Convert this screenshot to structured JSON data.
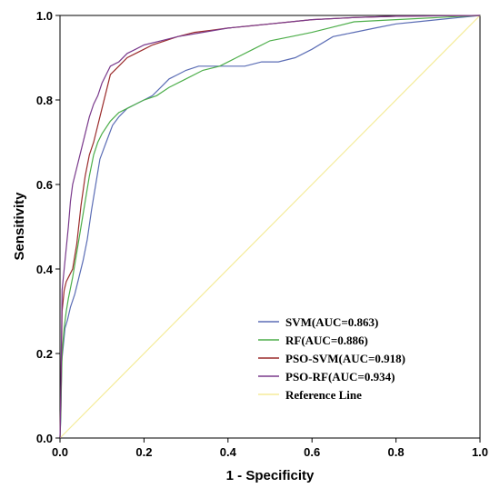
{
  "chart_data": {
    "type": "line",
    "title": "",
    "xlabel": "1 - Specificity",
    "ylabel": "Sensitivity",
    "xlim": [
      0,
      1
    ],
    "ylim": [
      0,
      1
    ],
    "xticks": [
      "0.0",
      "0.2",
      "0.4",
      "0.6",
      "0.8",
      "1.0"
    ],
    "yticks": [
      "0.0",
      "0.2",
      "0.4",
      "0.6",
      "0.8",
      "1.0"
    ],
    "grid": false,
    "legend_position": "bottom-right",
    "series": [
      {
        "name": "SVM(AUC=0.863)",
        "color": "#5b6db5",
        "points": [
          [
            0,
            0
          ],
          [
            0.002,
            0.05
          ],
          [
            0.004,
            0.18
          ],
          [
            0.008,
            0.22
          ],
          [
            0.012,
            0.26
          ],
          [
            0.018,
            0.28
          ],
          [
            0.025,
            0.31
          ],
          [
            0.035,
            0.34
          ],
          [
            0.045,
            0.38
          ],
          [
            0.055,
            0.42
          ],
          [
            0.065,
            0.47
          ],
          [
            0.075,
            0.54
          ],
          [
            0.085,
            0.6
          ],
          [
            0.095,
            0.66
          ],
          [
            0.11,
            0.7
          ],
          [
            0.125,
            0.74
          ],
          [
            0.14,
            0.76
          ],
          [
            0.16,
            0.78
          ],
          [
            0.18,
            0.79
          ],
          [
            0.2,
            0.8
          ],
          [
            0.22,
            0.81
          ],
          [
            0.24,
            0.83
          ],
          [
            0.26,
            0.85
          ],
          [
            0.28,
            0.86
          ],
          [
            0.3,
            0.87
          ],
          [
            0.33,
            0.88
          ],
          [
            0.36,
            0.88
          ],
          [
            0.4,
            0.88
          ],
          [
            0.44,
            0.88
          ],
          [
            0.48,
            0.89
          ],
          [
            0.52,
            0.89
          ],
          [
            0.56,
            0.9
          ],
          [
            0.6,
            0.92
          ],
          [
            0.65,
            0.95
          ],
          [
            0.7,
            0.96
          ],
          [
            0.75,
            0.97
          ],
          [
            0.8,
            0.98
          ],
          [
            0.85,
            0.985
          ],
          [
            0.9,
            0.99
          ],
          [
            0.95,
            0.995
          ],
          [
            1,
            1
          ]
        ]
      },
      {
        "name": "RF(AUC=0.886)",
        "color": "#4dae4a",
        "points": [
          [
            0,
            0
          ],
          [
            0.002,
            0.06
          ],
          [
            0.005,
            0.2
          ],
          [
            0.01,
            0.26
          ],
          [
            0.015,
            0.3
          ],
          [
            0.02,
            0.33
          ],
          [
            0.03,
            0.38
          ],
          [
            0.04,
            0.44
          ],
          [
            0.05,
            0.5
          ],
          [
            0.06,
            0.56
          ],
          [
            0.07,
            0.62
          ],
          [
            0.08,
            0.67
          ],
          [
            0.09,
            0.7
          ],
          [
            0.1,
            0.72
          ],
          [
            0.12,
            0.75
          ],
          [
            0.14,
            0.77
          ],
          [
            0.16,
            0.78
          ],
          [
            0.18,
            0.79
          ],
          [
            0.2,
            0.8
          ],
          [
            0.23,
            0.81
          ],
          [
            0.26,
            0.83
          ],
          [
            0.3,
            0.85
          ],
          [
            0.34,
            0.87
          ],
          [
            0.38,
            0.88
          ],
          [
            0.42,
            0.9
          ],
          [
            0.46,
            0.92
          ],
          [
            0.5,
            0.94
          ],
          [
            0.55,
            0.95
          ],
          [
            0.6,
            0.96
          ],
          [
            0.64,
            0.97
          ],
          [
            0.7,
            0.985
          ],
          [
            0.8,
            0.99
          ],
          [
            0.9,
            0.995
          ],
          [
            1,
            1
          ]
        ]
      },
      {
        "name": "PSO-SVM(AUC=0.918)",
        "color": "#9b2c2c",
        "points": [
          [
            0,
            0
          ],
          [
            0.002,
            0.1
          ],
          [
            0.005,
            0.3
          ],
          [
            0.01,
            0.35
          ],
          [
            0.015,
            0.37
          ],
          [
            0.02,
            0.38
          ],
          [
            0.03,
            0.4
          ],
          [
            0.04,
            0.46
          ],
          [
            0.05,
            0.55
          ],
          [
            0.06,
            0.62
          ],
          [
            0.07,
            0.67
          ],
          [
            0.08,
            0.7
          ],
          [
            0.09,
            0.74
          ],
          [
            0.1,
            0.78
          ],
          [
            0.11,
            0.82
          ],
          [
            0.12,
            0.86
          ],
          [
            0.14,
            0.88
          ],
          [
            0.16,
            0.9
          ],
          [
            0.18,
            0.91
          ],
          [
            0.2,
            0.92
          ],
          [
            0.22,
            0.93
          ],
          [
            0.25,
            0.94
          ],
          [
            0.28,
            0.95
          ],
          [
            0.32,
            0.96
          ],
          [
            0.36,
            0.965
          ],
          [
            0.4,
            0.97
          ],
          [
            0.45,
            0.975
          ],
          [
            0.5,
            0.98
          ],
          [
            0.55,
            0.985
          ],
          [
            0.6,
            0.99
          ],
          [
            0.7,
            0.995
          ],
          [
            0.8,
            0.998
          ],
          [
            1,
            1
          ]
        ]
      },
      {
        "name": "PSO-RF(AUC=0.934)",
        "color": "#7a3a8c",
        "points": [
          [
            0,
            0
          ],
          [
            0.002,
            0.1
          ],
          [
            0.005,
            0.35
          ],
          [
            0.01,
            0.4
          ],
          [
            0.015,
            0.45
          ],
          [
            0.02,
            0.5
          ],
          [
            0.025,
            0.56
          ],
          [
            0.03,
            0.6
          ],
          [
            0.04,
            0.64
          ],
          [
            0.05,
            0.68
          ],
          [
            0.06,
            0.72
          ],
          [
            0.07,
            0.76
          ],
          [
            0.08,
            0.79
          ],
          [
            0.09,
            0.81
          ],
          [
            0.1,
            0.84
          ],
          [
            0.11,
            0.86
          ],
          [
            0.12,
            0.88
          ],
          [
            0.14,
            0.89
          ],
          [
            0.16,
            0.91
          ],
          [
            0.18,
            0.92
          ],
          [
            0.2,
            0.93
          ],
          [
            0.24,
            0.94
          ],
          [
            0.28,
            0.95
          ],
          [
            0.34,
            0.96
          ],
          [
            0.4,
            0.97
          ],
          [
            0.5,
            0.98
          ],
          [
            0.6,
            0.99
          ],
          [
            0.7,
            0.995
          ],
          [
            0.8,
            0.998
          ],
          [
            1,
            1
          ]
        ]
      },
      {
        "name": "Reference Line",
        "color": "#f5ec9a",
        "points": [
          [
            0,
            0
          ],
          [
            1,
            1
          ]
        ]
      }
    ]
  }
}
